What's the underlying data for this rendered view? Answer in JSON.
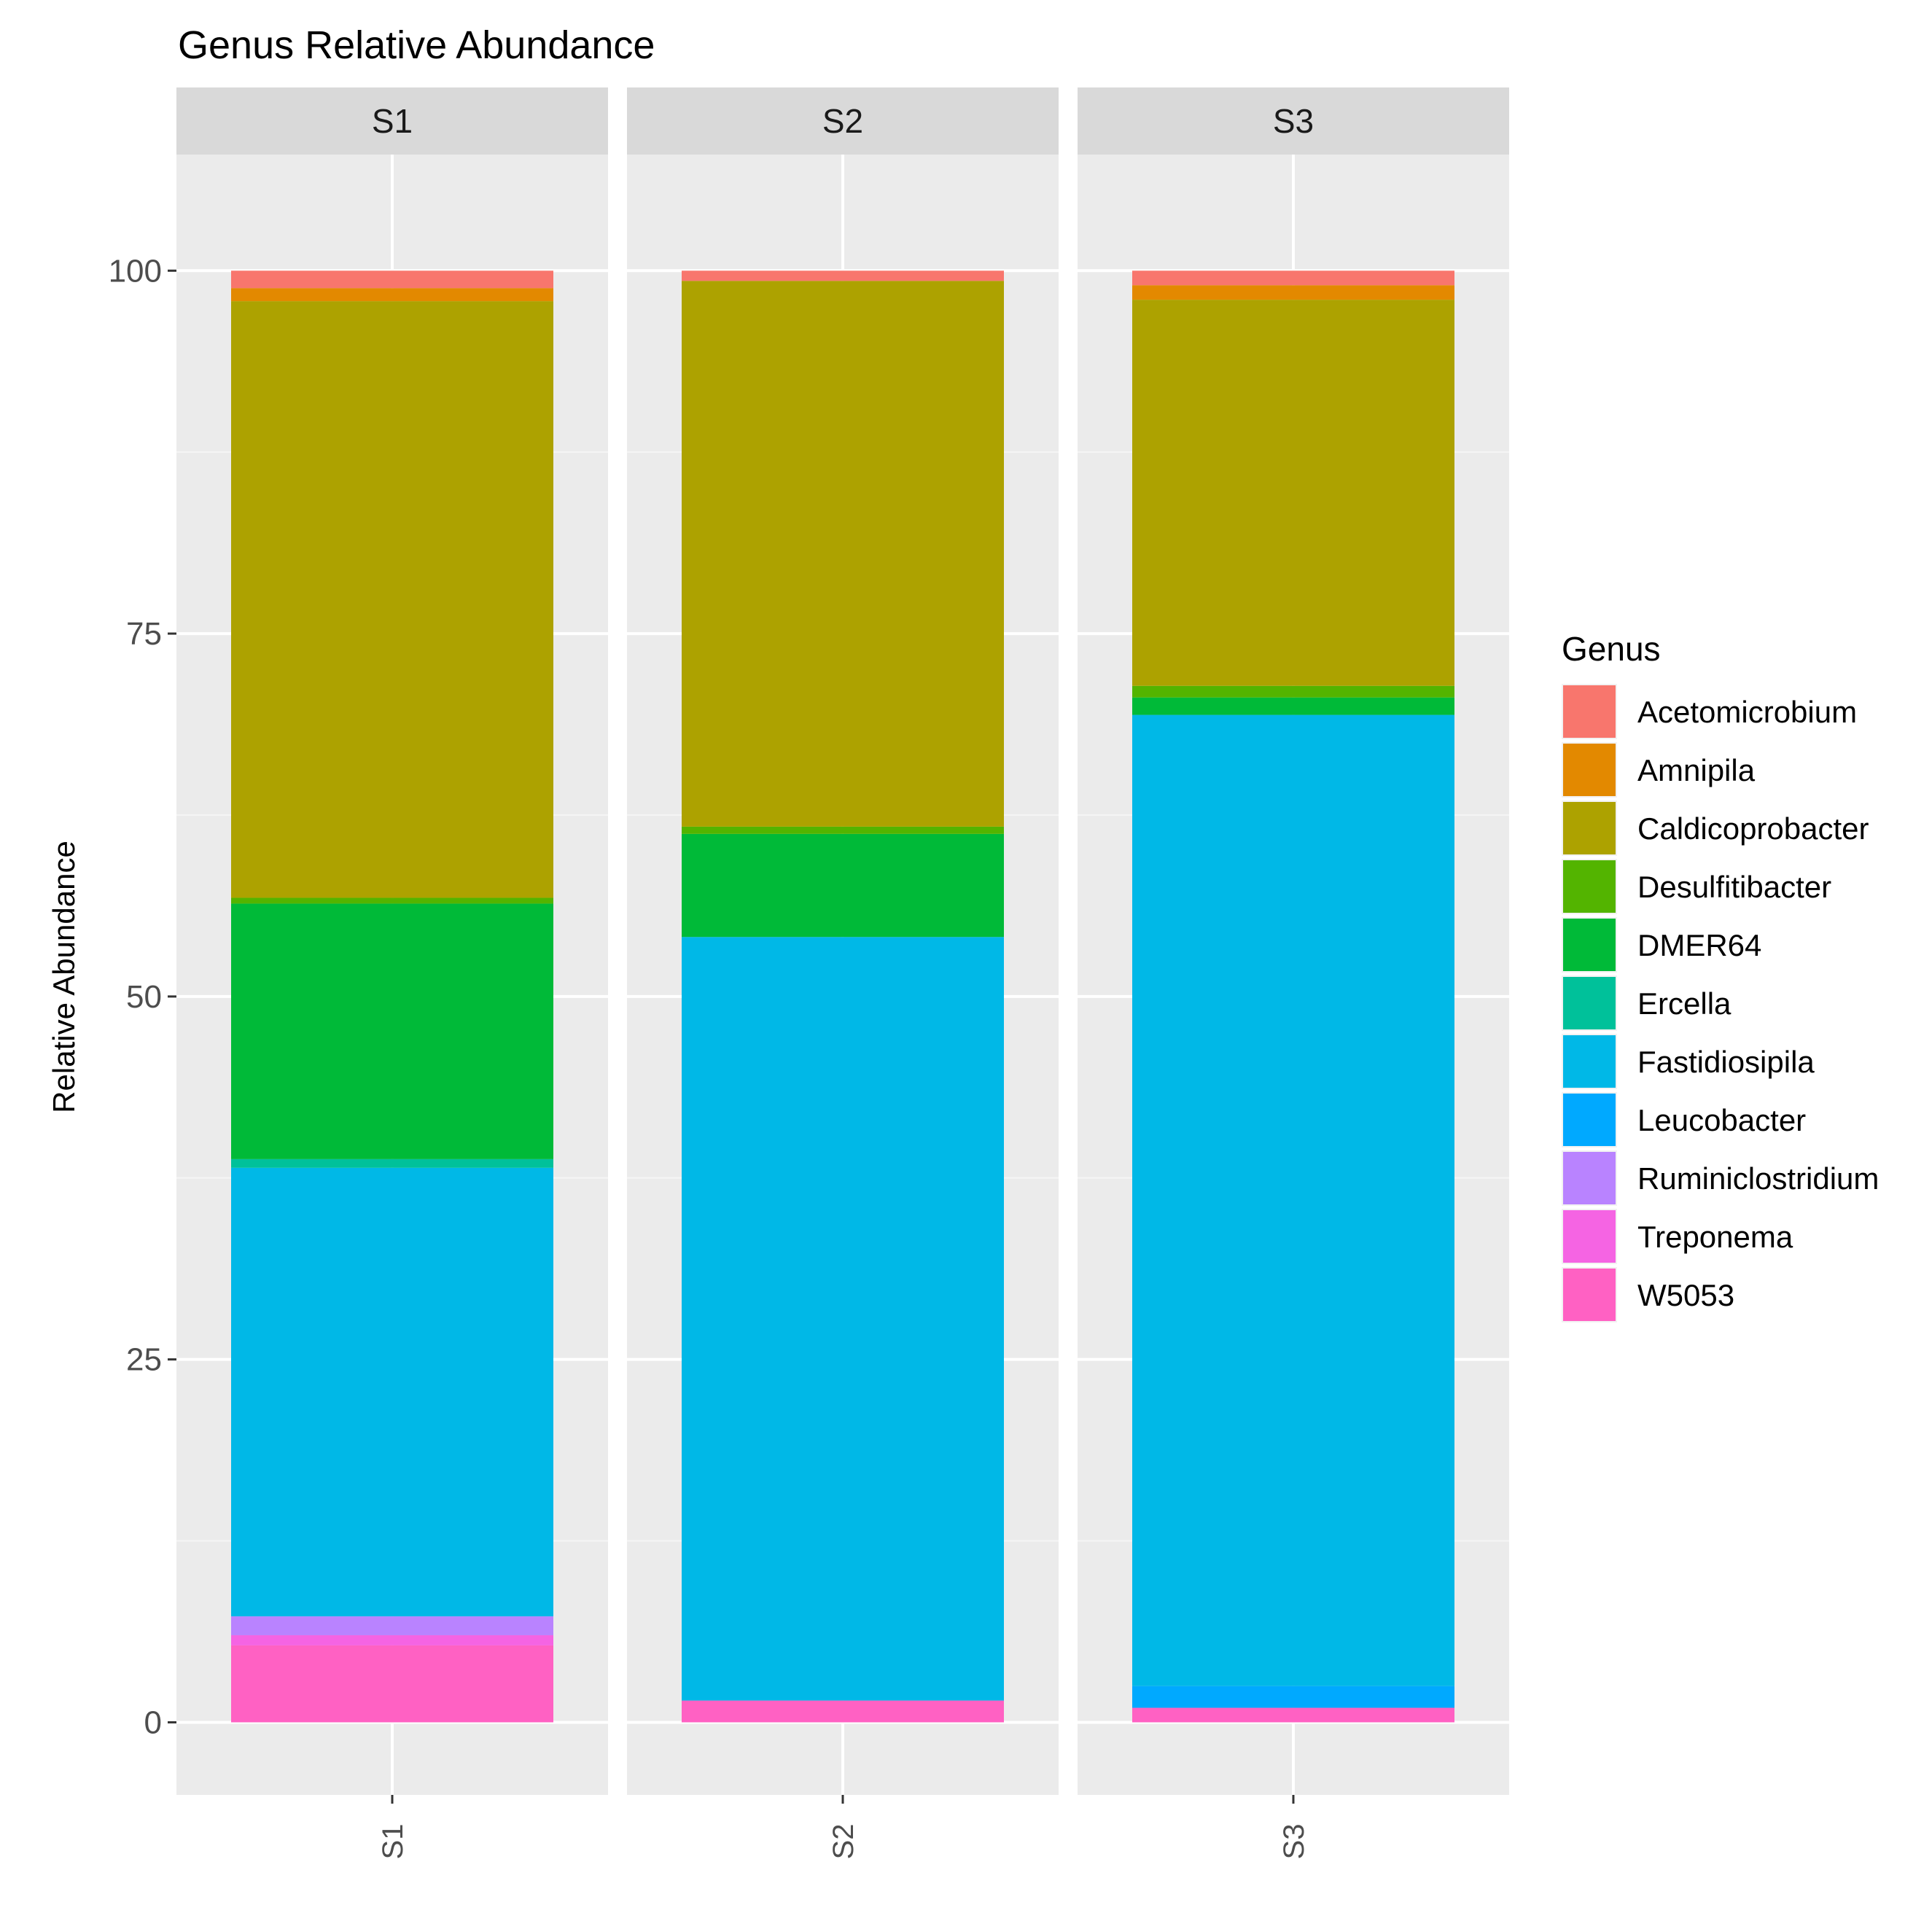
{
  "chart_data": {
    "type": "bar",
    "stacked": true,
    "faceted": true,
    "title": "Genus Relative Abundance",
    "ylabel": "Relative Abundance",
    "xlabel": "",
    "ylim": [
      -5,
      108
    ],
    "yticks": [
      0,
      25,
      50,
      75,
      100
    ],
    "grid": true,
    "legend": {
      "title": "Genus",
      "position": "right"
    },
    "facets": [
      "S1",
      "S2",
      "S3"
    ],
    "categories": [
      "S1",
      "S2",
      "S3"
    ],
    "series": [
      {
        "name": "W5053",
        "color": "#FF61C3",
        "values": [
          5.3,
          1.5,
          1.0
        ]
      },
      {
        "name": "Treponema",
        "color": "#F564E3",
        "values": [
          0.7,
          0,
          0
        ]
      },
      {
        "name": "Ruminiclostridium",
        "color": "#B983FF",
        "values": [
          1.3,
          0,
          0
        ]
      },
      {
        "name": "Leucobacter",
        "color": "#00A9FF",
        "values": [
          0,
          0,
          1.5
        ]
      },
      {
        "name": "Fastidiosipila",
        "color": "#00B8E7",
        "values": [
          30.9,
          52.6,
          66.9
        ]
      },
      {
        "name": "Ercella",
        "color": "#00C19A",
        "values": [
          0.6,
          0,
          0
        ]
      },
      {
        "name": "DMER64",
        "color": "#00BA38",
        "values": [
          17.6,
          7.1,
          1.2
        ]
      },
      {
        "name": "Desulfitibacter",
        "color": "#53B400",
        "values": [
          0.4,
          0.5,
          0.8
        ]
      },
      {
        "name": "Caldicoprobacter",
        "color": "#ADA200",
        "values": [
          41.1,
          37.6,
          26.6
        ]
      },
      {
        "name": "Amnipila",
        "color": "#E38900",
        "values": [
          0.9,
          0,
          1.0
        ]
      },
      {
        "name": "Acetomicrobium",
        "color": "#F8766D",
        "values": [
          1.2,
          0.7,
          1.0
        ]
      }
    ],
    "legend_order": [
      "Acetomicrobium",
      "Amnipila",
      "Caldicoprobacter",
      "Desulfitibacter",
      "DMER64",
      "Ercella",
      "Fastidiosipila",
      "Leucobacter",
      "Ruminiclostridium",
      "Treponema",
      "W5053"
    ]
  }
}
